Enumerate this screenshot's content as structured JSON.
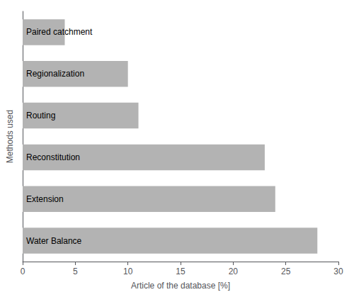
{
  "chart_data": {
    "type": "bar",
    "orientation": "horizontal",
    "categories": [
      "Paired catchment",
      "Regionalization",
      "Routing",
      "Reconstitution",
      "Extension",
      "Water Balance"
    ],
    "values": [
      4,
      10,
      11,
      23,
      24,
      28
    ],
    "color": "#b3b3b3",
    "xlabel": "Article of the database [%]",
    "ylabel": "Methods used",
    "xlim": [
      0,
      30
    ],
    "xticks": [
      0,
      5,
      10,
      15,
      20,
      25,
      30
    ],
    "grid": false,
    "tick_labels": "x"
  }
}
